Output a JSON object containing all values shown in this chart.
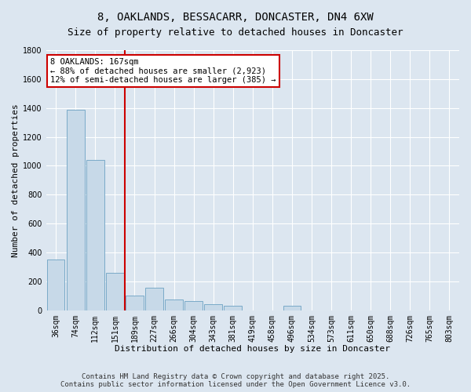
{
  "title_line1": "8, OAKLANDS, BESSACARR, DONCASTER, DN4 6XW",
  "title_line2": "Size of property relative to detached houses in Doncaster",
  "xlabel": "Distribution of detached houses by size in Doncaster",
  "ylabel": "Number of detached properties",
  "categories": [
    "36sqm",
    "74sqm",
    "112sqm",
    "151sqm",
    "189sqm",
    "227sqm",
    "266sqm",
    "304sqm",
    "343sqm",
    "381sqm",
    "419sqm",
    "458sqm",
    "496sqm",
    "534sqm",
    "573sqm",
    "611sqm",
    "650sqm",
    "688sqm",
    "726sqm",
    "765sqm",
    "803sqm"
  ],
  "values": [
    350,
    1390,
    1040,
    260,
    100,
    155,
    75,
    65,
    40,
    30,
    0,
    0,
    30,
    0,
    0,
    0,
    0,
    0,
    0,
    0,
    0
  ],
  "bar_color": "#c7d9e8",
  "bar_edge_color": "#7aaac8",
  "annotation_text": "8 OAKLANDS: 167sqm\n← 88% of detached houses are smaller (2,923)\n12% of semi-detached houses are larger (385) →",
  "annotation_box_color": "#ffffff",
  "annotation_box_edge_color": "#cc0000",
  "vline_color": "#cc0000",
  "ylim": [
    0,
    1800
  ],
  "yticks": [
    0,
    200,
    400,
    600,
    800,
    1000,
    1200,
    1400,
    1600,
    1800
  ],
  "background_color": "#dce6f0",
  "grid_color": "#ffffff",
  "footer_text": "Contains HM Land Registry data © Crown copyright and database right 2025.\nContains public sector information licensed under the Open Government Licence v3.0.",
  "title_fontsize": 10,
  "subtitle_fontsize": 9,
  "axis_label_fontsize": 8,
  "tick_fontsize": 7,
  "annotation_fontsize": 7.5,
  "footer_fontsize": 6.5
}
